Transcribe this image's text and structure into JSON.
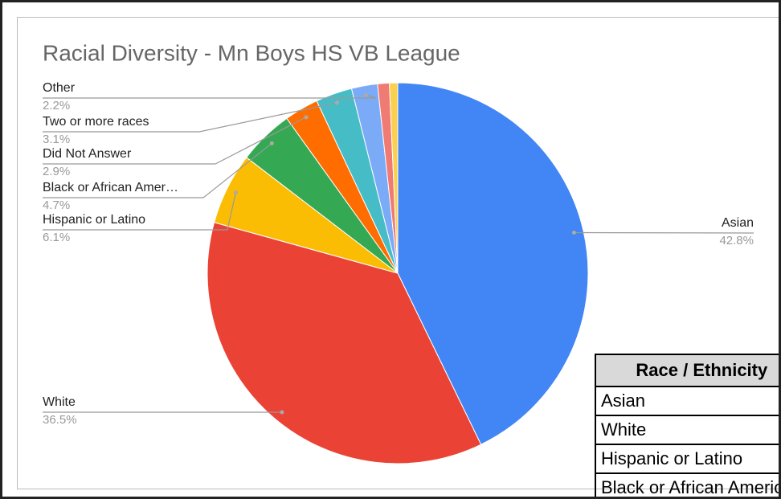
{
  "chart_data": {
    "type": "pie",
    "title": "Racial Diversity - Mn Boys HS VB League",
    "categories": [
      "Asian",
      "White",
      "Hispanic or Latino",
      "Black or African Amer…",
      "Did Not Answer",
      "Two or more races",
      "Other",
      null,
      null
    ],
    "values": [
      42.8,
      36.5,
      6.1,
      4.7,
      2.9,
      3.1,
      2.2,
      1.0,
      0.7
    ],
    "value_labels": [
      "42.8%",
      "36.5%",
      "6.1%",
      "4.7%",
      "2.9%",
      "3.1%",
      "2.2%",
      null,
      null
    ],
    "colors": [
      "#4285f4",
      "#ea4335",
      "#fbbc04",
      "#34a853",
      "#ff6d01",
      "#46bdc6",
      "#7baaf7",
      "#f07b72",
      "#fcd04f"
    ]
  },
  "table": {
    "header": [
      "Race / Ethnicity"
    ],
    "rows": [
      [
        "Asian"
      ],
      [
        "White"
      ],
      [
        "Hispanic or Latino"
      ],
      [
        "Black or African American"
      ]
    ]
  }
}
